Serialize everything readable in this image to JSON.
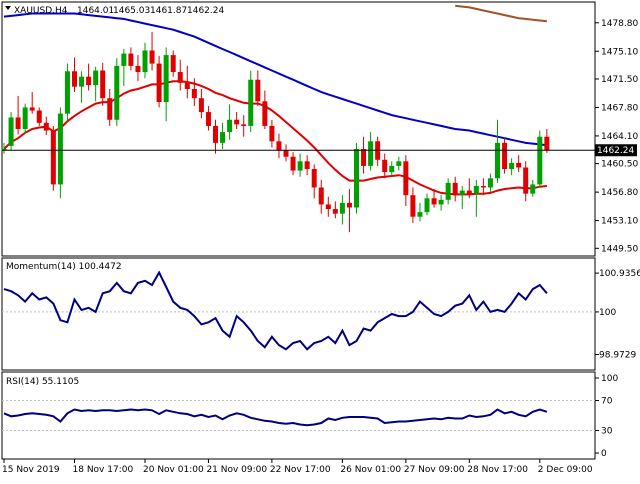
{
  "chart_data": [
    {
      "type": "candlestick",
      "panel": "price",
      "header": {
        "symbol_tf": "XAUUSD,H4",
        "open": "1464.01",
        "high": "1465.03",
        "low": "1461.87",
        "close": "1462.24"
      },
      "ylim": [
        1448.5,
        1481.5
      ],
      "y_ticks": [
        "1478.80",
        "1475.10",
        "1471.50",
        "1467.80",
        "1464.10",
        "1460.50",
        "1456.80",
        "1453.10",
        "1449.50"
      ],
      "current_price": 1462.24,
      "current_price_label": "1462.24",
      "candles": [
        {
          "o": 1462.2,
          "h": 1463.2,
          "l": 1461.8,
          "c": 1462.4
        },
        {
          "o": 1462.8,
          "h": 1467.2,
          "l": 1462.2,
          "c": 1466.5
        },
        {
          "o": 1466.5,
          "h": 1469.3,
          "l": 1464.3,
          "c": 1465.0
        },
        {
          "o": 1465.0,
          "h": 1468.3,
          "l": 1464.4,
          "c": 1467.8
        },
        {
          "o": 1467.8,
          "h": 1469.8,
          "l": 1467.0,
          "c": 1467.4
        },
        {
          "o": 1467.4,
          "h": 1467.8,
          "l": 1465.4,
          "c": 1465.8
        },
        {
          "o": 1465.8,
          "h": 1466.6,
          "l": 1464.2,
          "c": 1464.8
        },
        {
          "o": 1464.8,
          "h": 1465.4,
          "l": 1457.0,
          "c": 1457.8
        },
        {
          "o": 1457.8,
          "h": 1467.8,
          "l": 1456.0,
          "c": 1467.0
        },
        {
          "o": 1467.0,
          "h": 1473.5,
          "l": 1466.0,
          "c": 1472.5
        },
        {
          "o": 1472.5,
          "h": 1474.3,
          "l": 1469.8,
          "c": 1470.5
        },
        {
          "o": 1470.5,
          "h": 1472.5,
          "l": 1468.4,
          "c": 1471.8
        },
        {
          "o": 1471.8,
          "h": 1473.5,
          "l": 1470.0,
          "c": 1470.7
        },
        {
          "o": 1470.7,
          "h": 1473.1,
          "l": 1468.6,
          "c": 1472.6
        },
        {
          "o": 1472.6,
          "h": 1473.6,
          "l": 1468.0,
          "c": 1469.0
        },
        {
          "o": 1469.0,
          "h": 1470.2,
          "l": 1465.4,
          "c": 1466.2
        },
        {
          "o": 1466.2,
          "h": 1474.2,
          "l": 1465.4,
          "c": 1473.2
        },
        {
          "o": 1473.2,
          "h": 1475.4,
          "l": 1470.6,
          "c": 1474.8
        },
        {
          "o": 1474.8,
          "h": 1475.6,
          "l": 1472.6,
          "c": 1473.2
        },
        {
          "o": 1473.2,
          "h": 1474.6,
          "l": 1471.2,
          "c": 1472.4
        },
        {
          "o": 1472.4,
          "h": 1476.2,
          "l": 1471.6,
          "c": 1475.2
        },
        {
          "o": 1475.2,
          "h": 1477.6,
          "l": 1472.6,
          "c": 1473.5
        },
        {
          "o": 1473.5,
          "h": 1474.5,
          "l": 1467.8,
          "c": 1468.5
        },
        {
          "o": 1468.5,
          "h": 1475.6,
          "l": 1466.0,
          "c": 1474.6
        },
        {
          "o": 1474.6,
          "h": 1475.2,
          "l": 1471.8,
          "c": 1472.4
        },
        {
          "o": 1472.4,
          "h": 1474.0,
          "l": 1470.0,
          "c": 1471.0
        },
        {
          "o": 1471.0,
          "h": 1473.2,
          "l": 1469.0,
          "c": 1470.2
        },
        {
          "o": 1470.2,
          "h": 1471.6,
          "l": 1468.0,
          "c": 1469.0
        },
        {
          "o": 1469.0,
          "h": 1470.2,
          "l": 1466.4,
          "c": 1467.2
        },
        {
          "o": 1467.2,
          "h": 1468.0,
          "l": 1464.8,
          "c": 1465.4
        },
        {
          "o": 1465.4,
          "h": 1466.2,
          "l": 1461.8,
          "c": 1463.2
        },
        {
          "o": 1463.2,
          "h": 1465.8,
          "l": 1462.4,
          "c": 1464.6
        },
        {
          "o": 1464.6,
          "h": 1468.2,
          "l": 1463.6,
          "c": 1466.2
        },
        {
          "o": 1466.2,
          "h": 1467.2,
          "l": 1465.0,
          "c": 1465.6
        },
        {
          "o": 1465.6,
          "h": 1466.8,
          "l": 1464.0,
          "c": 1465.4
        },
        {
          "o": 1465.4,
          "h": 1472.6,
          "l": 1464.6,
          "c": 1471.4
        },
        {
          "o": 1471.4,
          "h": 1472.6,
          "l": 1468.0,
          "c": 1468.6
        },
        {
          "o": 1468.6,
          "h": 1470.0,
          "l": 1465.0,
          "c": 1465.4
        },
        {
          "o": 1465.4,
          "h": 1466.2,
          "l": 1462.6,
          "c": 1463.4
        },
        {
          "o": 1463.4,
          "h": 1464.4,
          "l": 1461.2,
          "c": 1462.2
        },
        {
          "o": 1462.2,
          "h": 1463.0,
          "l": 1460.8,
          "c": 1461.4
        },
        {
          "o": 1461.4,
          "h": 1462.0,
          "l": 1459.0,
          "c": 1459.6
        },
        {
          "o": 1459.6,
          "h": 1461.8,
          "l": 1458.8,
          "c": 1460.8
        },
        {
          "o": 1460.8,
          "h": 1461.6,
          "l": 1459.0,
          "c": 1459.8
        },
        {
          "o": 1459.8,
          "h": 1460.4,
          "l": 1456.0,
          "c": 1457.4
        },
        {
          "o": 1457.4,
          "h": 1458.4,
          "l": 1454.0,
          "c": 1455.2
        },
        {
          "o": 1455.2,
          "h": 1456.2,
          "l": 1453.6,
          "c": 1454.6
        },
        {
          "o": 1454.6,
          "h": 1455.6,
          "l": 1453.4,
          "c": 1454.0
        },
        {
          "o": 1454.0,
          "h": 1456.4,
          "l": 1452.6,
          "c": 1455.4
        },
        {
          "o": 1455.4,
          "h": 1457.2,
          "l": 1451.6,
          "c": 1454.8
        },
        {
          "o": 1454.8,
          "h": 1463.2,
          "l": 1454.0,
          "c": 1462.4
        },
        {
          "o": 1462.4,
          "h": 1464.0,
          "l": 1459.2,
          "c": 1460.2
        },
        {
          "o": 1460.2,
          "h": 1464.6,
          "l": 1459.6,
          "c": 1463.4
        },
        {
          "o": 1463.4,
          "h": 1464.0,
          "l": 1460.2,
          "c": 1461.0
        },
        {
          "o": 1461.0,
          "h": 1461.8,
          "l": 1458.6,
          "c": 1459.4
        },
        {
          "o": 1459.4,
          "h": 1460.8,
          "l": 1458.8,
          "c": 1460.2
        },
        {
          "o": 1460.2,
          "h": 1461.4,
          "l": 1459.6,
          "c": 1460.8
        },
        {
          "o": 1460.8,
          "h": 1461.6,
          "l": 1455.0,
          "c": 1456.4
        },
        {
          "o": 1456.4,
          "h": 1457.4,
          "l": 1452.8,
          "c": 1453.6
        },
        {
          "o": 1453.6,
          "h": 1455.4,
          "l": 1453.0,
          "c": 1454.2
        },
        {
          "o": 1454.2,
          "h": 1456.6,
          "l": 1453.8,
          "c": 1456.0
        },
        {
          "o": 1456.0,
          "h": 1457.2,
          "l": 1454.8,
          "c": 1455.2
        },
        {
          "o": 1455.2,
          "h": 1456.4,
          "l": 1454.4,
          "c": 1455.8
        },
        {
          "o": 1455.8,
          "h": 1458.6,
          "l": 1455.2,
          "c": 1458.0
        },
        {
          "o": 1458.0,
          "h": 1458.8,
          "l": 1455.6,
          "c": 1456.4
        },
        {
          "o": 1456.4,
          "h": 1457.6,
          "l": 1454.6,
          "c": 1457.0
        },
        {
          "o": 1457.0,
          "h": 1458.6,
          "l": 1456.0,
          "c": 1456.6
        },
        {
          "o": 1456.6,
          "h": 1458.4,
          "l": 1453.6,
          "c": 1457.6
        },
        {
          "o": 1457.6,
          "h": 1458.6,
          "l": 1456.4,
          "c": 1457.4
        },
        {
          "o": 1457.4,
          "h": 1459.2,
          "l": 1456.8,
          "c": 1458.6
        },
        {
          "o": 1458.6,
          "h": 1466.2,
          "l": 1458.0,
          "c": 1463.2
        },
        {
          "o": 1463.2,
          "h": 1463.8,
          "l": 1459.2,
          "c": 1459.8
        },
        {
          "o": 1459.8,
          "h": 1461.2,
          "l": 1459.0,
          "c": 1460.6
        },
        {
          "o": 1460.6,
          "h": 1461.6,
          "l": 1459.4,
          "c": 1460.0
        },
        {
          "o": 1460.0,
          "h": 1460.8,
          "l": 1455.6,
          "c": 1456.6
        },
        {
          "o": 1456.6,
          "h": 1458.4,
          "l": 1456.2,
          "c": 1457.8
        },
        {
          "o": 1457.8,
          "h": 1464.8,
          "l": 1457.4,
          "c": 1464.0
        },
        {
          "o": 1464.0,
          "h": 1465.0,
          "l": 1461.9,
          "c": 1462.2
        }
      ],
      "moving_averages": [
        {
          "color": "#e00000",
          "values": [
            1462.4,
            1463.3,
            1463.8,
            1464.5,
            1465.0,
            1465.2,
            1465.3,
            1464.7,
            1465.1,
            1466.0,
            1466.7,
            1467.3,
            1467.8,
            1468.3,
            1468.5,
            1468.5,
            1469.0,
            1469.6,
            1470.0,
            1470.2,
            1470.5,
            1470.8,
            1470.8,
            1471.0,
            1471.2,
            1471.2,
            1471.1,
            1470.9,
            1470.6,
            1470.2,
            1469.7,
            1469.4,
            1469.0,
            1468.7,
            1468.4,
            1468.3,
            1468.3,
            1468.0,
            1467.4,
            1466.7,
            1465.9,
            1465.1,
            1464.3,
            1463.5,
            1462.6,
            1461.6,
            1460.6,
            1459.7,
            1458.9,
            1458.3,
            1458.3,
            1458.3,
            1458.5,
            1458.7,
            1458.8,
            1458.9,
            1459.0,
            1458.8,
            1458.3,
            1457.8,
            1457.4,
            1457.0,
            1456.7,
            1456.6,
            1456.5,
            1456.5,
            1456.5,
            1456.6,
            1456.6,
            1456.7,
            1457.0,
            1457.2,
            1457.3,
            1457.4,
            1457.3,
            1457.3,
            1457.5,
            1457.6
          ]
        },
        {
          "color": "#0000c8",
          "values": [
            1479.6,
            1479.7,
            1479.8,
            1479.9,
            1480.0,
            1480.0,
            1480.0,
            1480.0,
            1480.0,
            1480.0,
            1480.0,
            1479.9,
            1479.8,
            1479.7,
            1479.6,
            1479.5,
            1479.4,
            1479.3,
            1479.1,
            1478.9,
            1478.7,
            1478.5,
            1478.3,
            1478.1,
            1477.9,
            1477.6,
            1477.3,
            1477.0,
            1476.6,
            1476.2,
            1475.8,
            1475.4,
            1475.0,
            1474.6,
            1474.2,
            1473.8,
            1473.4,
            1473.0,
            1472.6,
            1472.2,
            1471.8,
            1471.4,
            1471.0,
            1470.6,
            1470.2,
            1469.8,
            1469.5,
            1469.2,
            1468.9,
            1468.6,
            1468.3,
            1468.0,
            1467.7,
            1467.4,
            1467.1,
            1466.8,
            1466.6,
            1466.4,
            1466.2,
            1466.0,
            1465.8,
            1465.6,
            1465.4,
            1465.2,
            1465.0,
            1464.9,
            1464.8,
            1464.6,
            1464.4,
            1464.2,
            1464.0,
            1463.8,
            1463.6,
            1463.4,
            1463.2,
            1463.1,
            1463.0,
            1462.9
          ]
        },
        {
          "color": "#a0522d",
          "values": [
            null,
            null,
            null,
            null,
            null,
            null,
            null,
            null,
            null,
            null,
            null,
            null,
            null,
            null,
            null,
            null,
            null,
            null,
            null,
            null,
            null,
            null,
            null,
            null,
            null,
            null,
            null,
            null,
            null,
            null,
            null,
            null,
            null,
            null,
            null,
            null,
            null,
            null,
            null,
            null,
            null,
            null,
            null,
            null,
            null,
            null,
            null,
            null,
            null,
            null,
            null,
            null,
            null,
            null,
            null,
            null,
            null,
            null,
            null,
            null,
            null,
            null,
            null,
            null,
            1481.0,
            1480.9,
            1480.8,
            1480.6,
            1480.4,
            1480.2,
            1480.0,
            1479.8,
            1479.6,
            1479.4,
            1479.3,
            1479.2,
            1479.1,
            1479.0
          ]
        }
      ]
    },
    {
      "type": "line",
      "panel": "momentum",
      "header": "Momentum(14) 100.4472",
      "ylim": [
        98.6,
        101.3
      ],
      "y_ticks": [
        {
          "value": 100.9356,
          "label": "100.9356"
        },
        {
          "value": 100,
          "label": "100"
        },
        {
          "value": 98.9729,
          "label": "98.9729"
        }
      ],
      "level": 100,
      "values": [
        100.55,
        100.5,
        100.4,
        100.25,
        100.45,
        100.3,
        100.35,
        100.2,
        99.8,
        99.75,
        100.3,
        100.05,
        100.1,
        100.0,
        100.45,
        100.5,
        100.7,
        100.5,
        100.45,
        100.7,
        100.75,
        100.65,
        100.95,
        100.6,
        100.25,
        100.1,
        100.05,
        99.9,
        99.7,
        99.75,
        99.85,
        99.55,
        99.4,
        99.9,
        99.75,
        99.55,
        99.3,
        99.15,
        99.4,
        99.2,
        99.1,
        99.25,
        99.3,
        99.1,
        99.25,
        99.3,
        99.4,
        99.25,
        99.55,
        99.2,
        99.3,
        99.6,
        99.55,
        99.75,
        99.85,
        99.95,
        99.9,
        99.9,
        100.0,
        100.25,
        100.1,
        99.95,
        99.9,
        100.0,
        100.15,
        100.2,
        100.4,
        100.05,
        100.25,
        100.0,
        100.05,
        100.0,
        100.2,
        100.45,
        100.3,
        100.55,
        100.65,
        100.45
      ]
    },
    {
      "type": "line",
      "panel": "rsi",
      "header": "RSI(14) 55.1105",
      "ylim": [
        -8,
        108
      ],
      "y_ticks": [
        {
          "value": 100,
          "label": "100"
        },
        {
          "value": 70,
          "label": "70"
        },
        {
          "value": 30,
          "label": "30"
        },
        {
          "value": 0,
          "label": "0"
        }
      ],
      "levels": [
        70,
        30
      ],
      "values": [
        53,
        49,
        50,
        52,
        53,
        52,
        51,
        49,
        42,
        53,
        58,
        56,
        57,
        56,
        57,
        57,
        56,
        57,
        58,
        57,
        58,
        57,
        52,
        57,
        55,
        53,
        52,
        49,
        51,
        48,
        50,
        45,
        50,
        53,
        51,
        47,
        45,
        43,
        42,
        40,
        39,
        40,
        38,
        37,
        38,
        40,
        46,
        44,
        47,
        48,
        48,
        48,
        47,
        46,
        40,
        41,
        42,
        42,
        43,
        44,
        45,
        46,
        45,
        47,
        46,
        46,
        50,
        48,
        49,
        51,
        58,
        53,
        55,
        51,
        49,
        55,
        58,
        55
      ]
    },
    {
      "type": "time-axis",
      "x_ticks": [
        {
          "index": 0,
          "label": "15 Nov 2019"
        },
        {
          "index": 10,
          "label": "18 Nov 17:00"
        },
        {
          "index": 20,
          "label": "20 Nov 01:00"
        },
        {
          "index": 29,
          "label": "21 Nov 09:00"
        },
        {
          "index": 38,
          "label": "22 Nov 17:00"
        },
        {
          "index": 48,
          "label": "26 Nov 01:00"
        },
        {
          "index": 57,
          "label": "27 Nov 09:00"
        },
        {
          "index": 66,
          "label": "28 Nov 17:00"
        },
        {
          "index": 76,
          "label": "2 Dec 09:00"
        }
      ]
    }
  ],
  "colors": {
    "bull": "#00a000",
    "bear": "#e00000",
    "indicator": "#000080",
    "grid": "#c0c0c0",
    "frame": "#000000"
  }
}
